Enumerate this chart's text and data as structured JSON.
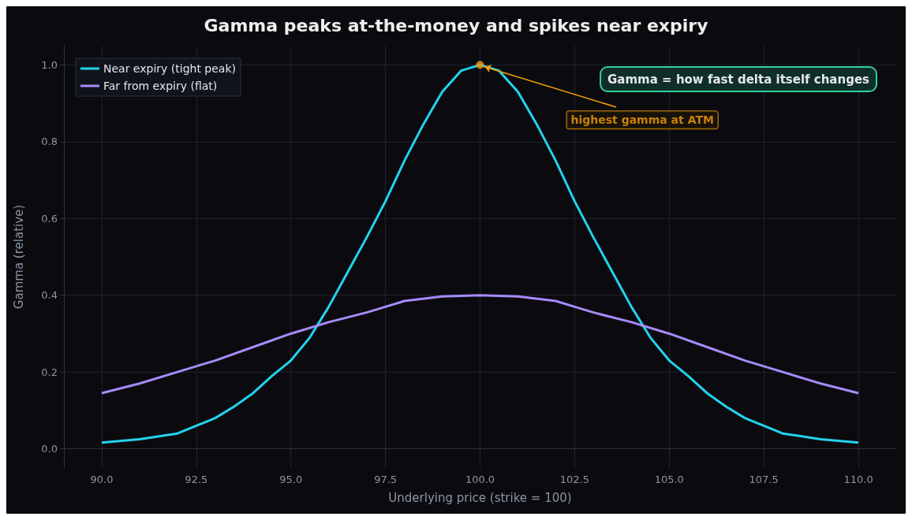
{
  "chart_data": {
    "type": "line",
    "title": "Gamma peaks at-the-money and spikes near expiry",
    "xlabel": "Underlying price (strike = 100)",
    "ylabel": "Gamma (relative)",
    "series": [
      {
        "name": "Near expiry (tight peak)",
        "color": "#22d3ee",
        "x": [
          90,
          91,
          92,
          92.5,
          93,
          93.5,
          94,
          94.5,
          95,
          95.5,
          96,
          96.5,
          97,
          97.5,
          98,
          98.5,
          99,
          99.5,
          100,
          100.5,
          101,
          101.5,
          102,
          102.5,
          103,
          103.5,
          104,
          104.5,
          105,
          105.5,
          106,
          106.5,
          107,
          107.5,
          108,
          109,
          110
        ],
        "values": [
          0.016,
          0.025,
          0.04,
          0.06,
          0.08,
          0.11,
          0.145,
          0.19,
          0.23,
          0.29,
          0.37,
          0.46,
          0.55,
          0.645,
          0.75,
          0.845,
          0.93,
          0.985,
          1.0,
          0.985,
          0.93,
          0.845,
          0.75,
          0.645,
          0.55,
          0.46,
          0.37,
          0.29,
          0.23,
          0.19,
          0.145,
          0.11,
          0.08,
          0.06,
          0.04,
          0.025,
          0.016
        ]
      },
      {
        "name": "Far from expiry (flat)",
        "color": "#a78bfa",
        "x": [
          90,
          91,
          92,
          92.5,
          93,
          94,
          95,
          96,
          97,
          97.5,
          98,
          99,
          100,
          101,
          102,
          102.5,
          103,
          104,
          105,
          106,
          107,
          107.5,
          108,
          109,
          110
        ],
        "values": [
          0.145,
          0.17,
          0.2,
          0.215,
          0.23,
          0.265,
          0.3,
          0.33,
          0.355,
          0.37,
          0.385,
          0.397,
          0.4,
          0.397,
          0.385,
          0.37,
          0.355,
          0.33,
          0.3,
          0.265,
          0.23,
          0.215,
          0.2,
          0.17,
          0.145
        ]
      }
    ],
    "annotations": [
      {
        "text": "highest gamma at ATM",
        "x": 100,
        "y": 1.0
      },
      "Gamma = how fast delta itself changes"
    ],
    "xlim": [
      89,
      111
    ],
    "ylim": [
      -0.05,
      1.05
    ],
    "xticks": [
      {
        "value": 90,
        "label": "90.0"
      },
      {
        "value": 92.5,
        "label": "92.5"
      },
      {
        "value": 95,
        "label": "95.0"
      },
      {
        "value": 97.5,
        "label": "97.5"
      },
      {
        "value": 100,
        "label": "100.0"
      },
      {
        "value": 102.5,
        "label": "102.5"
      },
      {
        "value": 105,
        "label": "105.0"
      },
      {
        "value": 107.5,
        "label": "107.5"
      },
      {
        "value": 110,
        "label": "110.0"
      }
    ],
    "yticks": [
      {
        "value": 0,
        "label": "0.0"
      },
      {
        "value": 0.2,
        "label": "0.2"
      },
      {
        "value": 0.4,
        "label": "0.4"
      },
      {
        "value": 0.6,
        "label": "0.6"
      },
      {
        "value": 0.8,
        "label": "0.8"
      },
      {
        "value": 1.0,
        "label": "1.0"
      }
    ],
    "grid": true,
    "legend": "top left",
    "line_style": "solid",
    "marker": "none"
  }
}
